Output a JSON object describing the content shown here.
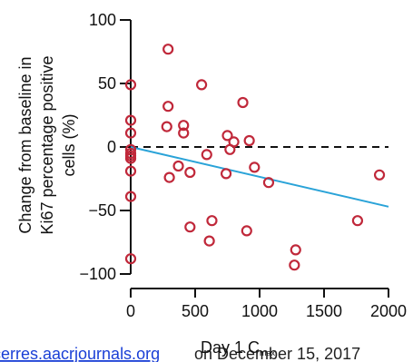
{
  "chart_data": {
    "type": "scatter",
    "title": "",
    "xlabel": "Day 1 C",
    "xlabel_sub": "max",
    "ylabel_lines": [
      "Change from baseline in",
      "Ki67 percentage positive",
      "cells (%)"
    ],
    "xlim": [
      0,
      2000
    ],
    "ylim": [
      -100,
      100
    ],
    "x_ticks": [
      0,
      500,
      1000,
      1500,
      2000
    ],
    "x_tick_labels": [
      "0",
      "500",
      "1000",
      "1500",
      "2000"
    ],
    "y_ticks": [
      100,
      50,
      0,
      -50,
      -100
    ],
    "y_tick_labels": [
      "100",
      "50",
      "0",
      "−50",
      "−100"
    ],
    "grid": false,
    "reference_line": {
      "y": 0,
      "style": "dashed",
      "color": "#111111"
    },
    "trend_line": {
      "x": [
        0,
        2000
      ],
      "y": [
        0,
        -47
      ],
      "color": "#2aa3d8"
    },
    "marker_color": "#c0283a",
    "points": [
      {
        "x": 0,
        "y": 49
      },
      {
        "x": 0,
        "y": 21
      },
      {
        "x": 0,
        "y": 11
      },
      {
        "x": 0,
        "y": -2
      },
      {
        "x": 0,
        "y": -5
      },
      {
        "x": 0,
        "y": -7
      },
      {
        "x": 0,
        "y": -9
      },
      {
        "x": 0,
        "y": -19
      },
      {
        "x": 0,
        "y": -39
      },
      {
        "x": 0,
        "y": -88
      },
      {
        "x": 290,
        "y": 77
      },
      {
        "x": 280,
        "y": 16
      },
      {
        "x": 290,
        "y": 32
      },
      {
        "x": 300,
        "y": -24
      },
      {
        "x": 370,
        "y": -15
      },
      {
        "x": 410,
        "y": 17
      },
      {
        "x": 410,
        "y": 11
      },
      {
        "x": 460,
        "y": -20
      },
      {
        "x": 460,
        "y": -63
      },
      {
        "x": 550,
        "y": 49
      },
      {
        "x": 590,
        "y": -6
      },
      {
        "x": 610,
        "y": -74
      },
      {
        "x": 630,
        "y": -58
      },
      {
        "x": 740,
        "y": -21
      },
      {
        "x": 750,
        "y": 9
      },
      {
        "x": 770,
        "y": -2
      },
      {
        "x": 800,
        "y": 4
      },
      {
        "x": 870,
        "y": 35
      },
      {
        "x": 900,
        "y": -66
      },
      {
        "x": 920,
        "y": 5
      },
      {
        "x": 960,
        "y": -16
      },
      {
        "x": 1070,
        "y": -28
      },
      {
        "x": 1280,
        "y": -81
      },
      {
        "x": 1270,
        "y": -93
      },
      {
        "x": 1760,
        "y": -58
      },
      {
        "x": 1930,
        "y": -22
      }
    ]
  },
  "footer": {
    "link_text": "cerres.aacrjournals.org",
    "text": "on December 15, 2017"
  }
}
